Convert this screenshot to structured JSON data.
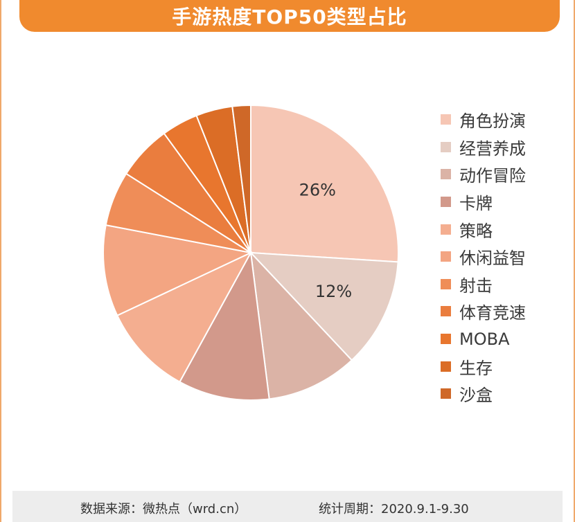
{
  "header": {
    "title": "手游热度TOP50类型占比"
  },
  "chart_data": {
    "type": "pie",
    "title": "手游热度TOP50类型占比",
    "categories": [
      "角色扮演",
      "经营养成",
      "动作冒险",
      "卡牌",
      "策略",
      "休闲益智",
      "射击",
      "体育竞速",
      "MOBA",
      "生存",
      "沙盒"
    ],
    "values": [
      26,
      12,
      10,
      10,
      10,
      10,
      6,
      6,
      4,
      4,
      2
    ],
    "data_labels": [
      "26%",
      "12%",
      "",
      "",
      "",
      "",
      "",
      "",
      "",
      "",
      ""
    ],
    "colors": [
      "#f6c6b4",
      "#e5cdc3",
      "#dbb3a6",
      "#d2998b",
      "#f4ae90",
      "#f3a582",
      "#ef8d58",
      "#ea7d3e",
      "#e8762e",
      "#db6d26",
      "#cf6828"
    ],
    "legend_position": "right"
  },
  "footer": {
    "source": "数据来源：微热点（wrd.cn）",
    "period": "统计周期：2020.9.1-9.30"
  }
}
